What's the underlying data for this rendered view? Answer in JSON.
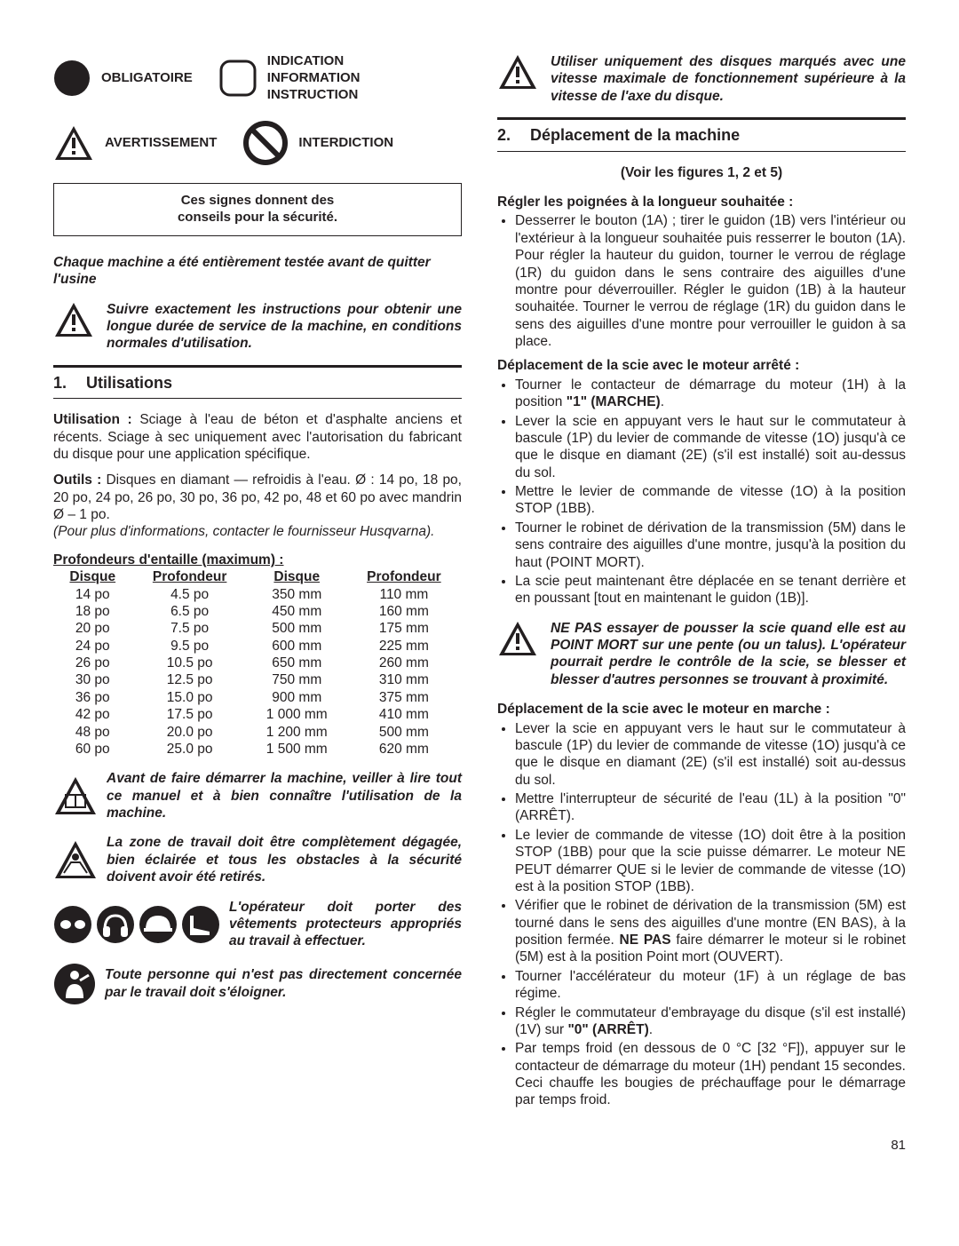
{
  "symbols": {
    "obligatoire": "OBLIGATOIRE",
    "indication_line1": "INDICATION",
    "indication_line2": "INFORMATION",
    "indication_line3": "INSTRUCTION",
    "avertissement": "AVERTISSEMENT",
    "interdiction": "INTERDICTION"
  },
  "safety_box_l1": "Ces signes donnent des",
  "safety_box_l2": "conseils pour la sécurité.",
  "tested_note": "Chaque machine a été entièrement testée avant de quitter l'usine",
  "follow_note": "Suivre exactement les instructions pour obtenir une longue durée de service de la machine, en conditions normales d'utilisation.",
  "sec1_num": "1.",
  "sec1_title": "Utilisations",
  "utilisation_p": "Utilisation : Sciage à l'eau de béton et d'asphalte anciens et récents. Sciage à sec uniquement avec l'autorisation du fabricant du disque pour une application spécifique.",
  "outils_p": "Outils : Disques en diamant — refroidis à l'eau. Ø : 14 po, 18 po, 20 po, 24 po, 26 po, 30 po, 36 po, 42 po, 48 et 60 po avec mandrin Ø – 1 po.",
  "outils_note": "(Pour plus d'informations, contacter le fournisseur Husqvarna).",
  "depth_head": "Profondeurs d'entaille (maximum) :",
  "depth_headers": {
    "d1": "Disque",
    "p1": "Profondeur",
    "d2": "Disque",
    "p2": "Profondeur"
  },
  "depth_rows": [
    {
      "a": "14 po",
      "b": "4.5 po",
      "c": "350 mm",
      "d": "110 mm"
    },
    {
      "a": "18 po",
      "b": "6.5 po",
      "c": "450 mm",
      "d": "160 mm"
    },
    {
      "a": "20 po",
      "b": "7.5 po",
      "c": "500 mm",
      "d": "175 mm"
    },
    {
      "a": "24 po",
      "b": "9.5 po",
      "c": "600 mm",
      "d": "225 mm"
    },
    {
      "a": "26 po",
      "b": "10.5 po",
      "c": "650 mm",
      "d": "260 mm"
    },
    {
      "a": "30 po",
      "b": "12.5 po",
      "c": "750 mm",
      "d": "310 mm"
    },
    {
      "a": "36 po",
      "b": "15.0 po",
      "c": "900 mm",
      "d": "375 mm"
    },
    {
      "a": "42 po",
      "b": "17.5 po",
      "c": "1 000 mm",
      "d": "410 mm"
    },
    {
      "a": "48 po",
      "b": "20.0 po",
      "c": "1 200 mm",
      "d": "500 mm"
    },
    {
      "a": "60 po",
      "b": "25.0 po",
      "c": "1 500 mm",
      "d": "620 mm"
    }
  ],
  "warn_read": "Avant de faire démarrer la machine, veiller à lire tout ce manuel et à bien connaître l'utilisation de la machine.",
  "warn_zone": "La zone de travail doit être complètement dégagée, bien éclairée et tous les obstacles à la sécurité doivent avoir été retirés.",
  "warn_clothes": "L'opérateur doit porter des vêtements protecteurs appropriés au travail à effectuer.",
  "warn_people": "Toute personne qui n'est pas directement concernée par le travail doit s'éloigner.",
  "disc_warn": "Utiliser uniquement des disques marqués avec une vitesse maximale de fonctionnement supérieure à la vitesse de l'axe du disque.",
  "sec2_num": "2.",
  "sec2_title": "Déplacement de la machine",
  "figs": "(Voir les figures 1, 2 et 5)",
  "handles_head": "Régler les poignées à la longueur souhaitée :",
  "handles_text": "Desserrer le bouton (1A) ; tirer le guidon (1B) vers l'intérieur ou l'extérieur à la longueur souhaitée puis resserrer le bouton (1A).  Pour régler la hauteur du guidon, tourner le verrou de réglage (1R) du guidon dans le sens contraire des aiguilles d'une montre pour déverrouiller. Régler le guidon (1B) à la hauteur souhaitée. Tourner le verrou de réglage (1R) du guidon dans le sens des aiguilles d'une montre pour verrouiller le guidon à sa place.",
  "off_head": "Déplacement de la scie avec le moteur arrêté :",
  "off_b1a": "Tourner le contacteur de démarrage du moteur (1H) à la position ",
  "off_b1b": "\"1\" (MARCHE)",
  "off_b1c": ".",
  "off_b2": "Lever la scie en appuyant vers le haut sur le commutateur à bascule (1P) du levier de commande de vitesse (1O) jusqu'à ce que le disque en diamant (2E) (s'il est installé) soit au-dessus du sol.",
  "off_b3": "Mettre le levier de commande de vitesse (1O) à la position STOP (1BB).",
  "off_b4": "Tourner le robinet de dérivation de la transmission (5M) dans le sens contraire des aiguilles d'une montre, jusqu'à la position du haut (POINT MORT).",
  "off_b5": "La scie peut maintenant être déplacée en se tenant derrière et en poussant [tout en maintenant le guidon (1B)].",
  "neutral_warn": "NE PAS essayer de pousser la scie quand elle est au POINT MORT sur une pente (ou un talus). L'opérateur pourrait perdre le contrôle de la scie, se blesser et blesser d'autres personnes se trouvant à proximité.",
  "on_head": "Déplacement de la scie avec le moteur en marche :",
  "on_b1": "Lever la scie en appuyant vers le haut sur le commutateur à bascule (1P) du levier de commande de vitesse (1O) jusqu'à ce que le disque en diamant (2E) (s'il est installé) soit au-dessus du sol.",
  "on_b2": "Mettre l'interrupteur de sécurité de l'eau (1L) à la position \"0\" (ARRÊT).",
  "on_b3": "Le levier de commande de vitesse (1O) doit être à la position STOP (1BB) pour que la scie puisse démarrer. Le moteur NE PEUT démarrer QUE si le levier de commande de vitesse (1O) est à la position STOP (1BB).",
  "on_b4a": "Vérifier que le robinet de dérivation de la transmission (5M) est tourné dans le sens des aiguilles d'une montre (EN BAS), à la position fermée. ",
  "on_b4b": "NE PAS",
  "on_b4c": " faire démarrer le moteur si le robinet (5M) est à la position Point mort (OUVERT).",
  "on_b5": "Tourner l'accélérateur du moteur (1F) à un réglage de bas régime.",
  "on_b6a": "Régler le commutateur d'embrayage du disque (s'il est installé) (1V) sur ",
  "on_b6b": "\"0\" (ARRÊT)",
  "on_b6c": ".",
  "on_b7": "Par temps froid (en dessous de 0 °C [32 °F]), appuyer sur le contacteur de démarrage du moteur (1H) pendant 15 secondes. Ceci chauffe les bougies de préchauffage pour le démarrage par temps froid.",
  "page_number": "81",
  "colors": {
    "text": "#231f20",
    "bg": "#ffffff"
  }
}
